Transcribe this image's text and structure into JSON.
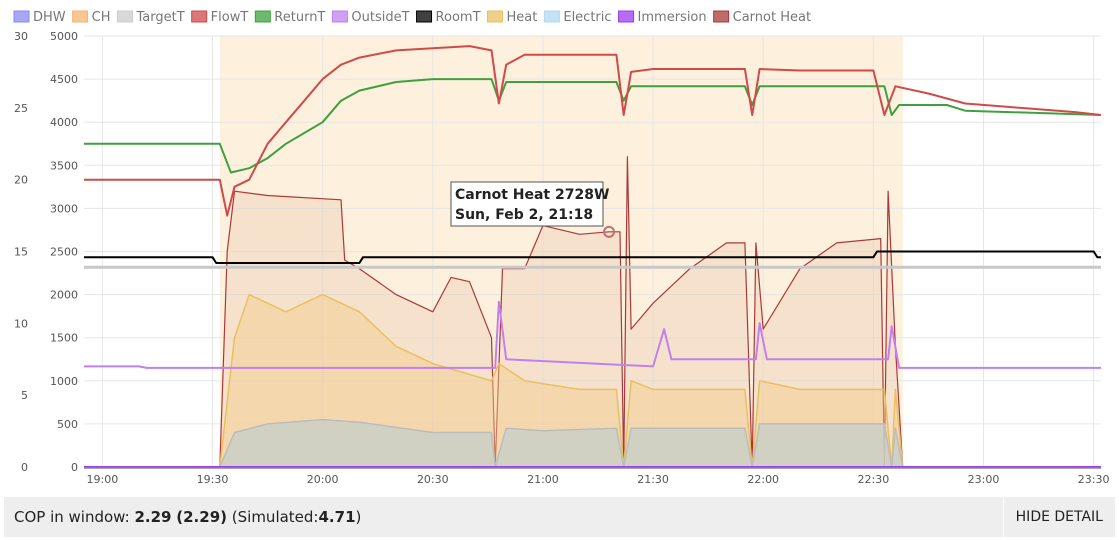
{
  "chart_data": {
    "type": "line",
    "x_axis": {
      "type": "time",
      "ticks": [
        "19:00",
        "19:30",
        "20:00",
        "20:30",
        "21:00",
        "21:30",
        "22:00",
        "22:30",
        "23:00",
        "23:30"
      ],
      "range": [
        "18:55",
        "23:32"
      ]
    },
    "y_axes": [
      {
        "side": "left-outer",
        "ticks": [
          0,
          5,
          10,
          15,
          20,
          25,
          30
        ],
        "range": [
          0,
          30
        ],
        "unit": "temperature"
      },
      {
        "side": "left-inner",
        "ticks": [
          0,
          500,
          1000,
          1500,
          2000,
          2500,
          3000,
          3500,
          4000,
          4500,
          5000
        ],
        "range": [
          0,
          5000
        ],
        "unit": "power"
      }
    ],
    "grid": true,
    "legend_position": "top-left",
    "highlight_band": {
      "from": "19:32",
      "to": "22:38",
      "color": "#fdf0dc"
    },
    "legend": [
      {
        "name": "DHW",
        "color": "#8a8af0"
      },
      {
        "name": "CH",
        "color": "#f5b46e"
      },
      {
        "name": "TargetT",
        "color": "#cccccc"
      },
      {
        "name": "FlowT",
        "color": "#d04a4a"
      },
      {
        "name": "ReturnT",
        "color": "#3fa03f"
      },
      {
        "name": "OutsideT",
        "color": "#c080f0"
      },
      {
        "name": "RoomT",
        "color": "#000000"
      },
      {
        "name": "Heat",
        "color": "#e8c060"
      },
      {
        "name": "Electric",
        "color": "#b0d8f0"
      },
      {
        "name": "Immersion",
        "color": "#9b3cf0"
      },
      {
        "name": "Carnot Heat",
        "color": "#a83a3a"
      }
    ],
    "series": [
      {
        "name": "FlowT",
        "axis": "temp",
        "points": [
          [
            "18:55",
            20.0
          ],
          [
            "19:32",
            20.0
          ],
          [
            "19:34",
            17.5
          ],
          [
            "19:36",
            19.5
          ],
          [
            "19:40",
            20.0
          ],
          [
            "19:45",
            22.5
          ],
          [
            "19:50",
            24.0
          ],
          [
            "19:55",
            25.5
          ],
          [
            "20:00",
            27.0
          ],
          [
            "20:05",
            28.0
          ],
          [
            "20:10",
            28.5
          ],
          [
            "20:20",
            29.0
          ],
          [
            "20:40",
            29.3
          ],
          [
            "20:46",
            29.0
          ],
          [
            "20:48",
            25.3
          ],
          [
            "20:50",
            28.0
          ],
          [
            "20:55",
            28.7
          ],
          [
            "21:10",
            28.7
          ],
          [
            "21:20",
            28.7
          ],
          [
            "21:22",
            24.5
          ],
          [
            "21:24",
            27.5
          ],
          [
            "21:30",
            27.7
          ],
          [
            "21:55",
            27.7
          ],
          [
            "21:57",
            24.5
          ],
          [
            "21:59",
            27.7
          ],
          [
            "22:10",
            27.6
          ],
          [
            "22:30",
            27.6
          ],
          [
            "22:33",
            24.5
          ],
          [
            "22:36",
            26.5
          ],
          [
            "22:45",
            26.0
          ],
          [
            "22:55",
            25.3
          ],
          [
            "23:05",
            25.1
          ],
          [
            "23:15",
            24.9
          ],
          [
            "23:25",
            24.7
          ],
          [
            "23:32",
            24.5
          ]
        ]
      },
      {
        "name": "ReturnT",
        "axis": "temp",
        "points": [
          [
            "18:55",
            22.5
          ],
          [
            "19:32",
            22.5
          ],
          [
            "19:35",
            20.5
          ],
          [
            "19:40",
            20.8
          ],
          [
            "19:45",
            21.5
          ],
          [
            "19:50",
            22.5
          ],
          [
            "20:00",
            24.0
          ],
          [
            "20:05",
            25.5
          ],
          [
            "20:10",
            26.2
          ],
          [
            "20:20",
            26.8
          ],
          [
            "20:30",
            27.0
          ],
          [
            "20:46",
            27.0
          ],
          [
            "20:48",
            25.5
          ],
          [
            "20:50",
            26.8
          ],
          [
            "21:20",
            26.8
          ],
          [
            "21:22",
            25.5
          ],
          [
            "21:24",
            26.5
          ],
          [
            "21:55",
            26.5
          ],
          [
            "21:57",
            25.2
          ],
          [
            "21:59",
            26.5
          ],
          [
            "22:33",
            26.5
          ],
          [
            "22:35",
            24.5
          ],
          [
            "22:37",
            25.2
          ],
          [
            "22:50",
            25.2
          ],
          [
            "22:55",
            24.8
          ],
          [
            "23:32",
            24.5
          ]
        ]
      },
      {
        "name": "TargetT",
        "axis": "temp",
        "points": [
          [
            "18:55",
            13.9
          ],
          [
            "23:32",
            13.9
          ]
        ]
      },
      {
        "name": "RoomT",
        "axis": "temp",
        "points": [
          [
            "18:55",
            14.6
          ],
          [
            "19:30",
            14.6
          ],
          [
            "19:31",
            14.2
          ],
          [
            "20:10",
            14.2
          ],
          [
            "20:11",
            14.6
          ],
          [
            "22:30",
            14.6
          ],
          [
            "22:31",
            15.0
          ],
          [
            "23:30",
            15.0
          ],
          [
            "23:31",
            14.6
          ],
          [
            "23:32",
            14.6
          ]
        ]
      },
      {
        "name": "OutsideT",
        "axis": "temp",
        "points": [
          [
            "18:55",
            7.0
          ],
          [
            "19:10",
            7.0
          ],
          [
            "19:12",
            6.9
          ],
          [
            "19:35",
            6.9
          ],
          [
            "20:47",
            6.9
          ],
          [
            "20:48",
            11.5
          ],
          [
            "20:50",
            7.5
          ],
          [
            "21:30",
            7.0
          ],
          [
            "21:33",
            9.6
          ],
          [
            "21:35",
            7.5
          ],
          [
            "21:58",
            7.5
          ],
          [
            "21:59",
            10.0
          ],
          [
            "22:01",
            7.5
          ],
          [
            "22:34",
            7.5
          ],
          [
            "22:35",
            9.8
          ],
          [
            "22:37",
            6.9
          ],
          [
            "23:32",
            6.9
          ]
        ]
      },
      {
        "name": "Heat",
        "axis": "power",
        "points": [
          [
            "19:32",
            0
          ],
          [
            "19:36",
            1500
          ],
          [
            "19:40",
            2000
          ],
          [
            "19:50",
            1800
          ],
          [
            "20:00",
            2000
          ],
          [
            "20:10",
            1800
          ],
          [
            "20:20",
            1400
          ],
          [
            "20:30",
            1200
          ],
          [
            "20:46",
            1000
          ],
          [
            "20:48",
            1200
          ],
          [
            "20:55",
            1000
          ],
          [
            "21:10",
            900
          ],
          [
            "21:20",
            900
          ],
          [
            "21:22",
            0
          ],
          [
            "21:24",
            1000
          ],
          [
            "21:30",
            900
          ],
          [
            "21:55",
            900
          ],
          [
            "21:57",
            0
          ],
          [
            "21:59",
            1000
          ],
          [
            "22:10",
            900
          ],
          [
            "22:33",
            900
          ],
          [
            "22:35",
            0
          ],
          [
            "22:36",
            900
          ],
          [
            "22:38",
            0
          ]
        ]
      },
      {
        "name": "Carnot Heat",
        "axis": "power",
        "points": [
          [
            "18:55",
            0
          ],
          [
            "19:32",
            0
          ],
          [
            "19:34",
            2500
          ],
          [
            "19:36",
            3200
          ],
          [
            "19:45",
            3150
          ],
          [
            "20:05",
            3100
          ],
          [
            "20:06",
            2400
          ],
          [
            "20:10",
            2300
          ],
          [
            "20:20",
            2000
          ],
          [
            "20:30",
            1800
          ],
          [
            "20:35",
            2200
          ],
          [
            "20:40",
            2150
          ],
          [
            "20:46",
            1500
          ],
          [
            "20:47",
            0
          ],
          [
            "20:49",
            2300
          ],
          [
            "20:55",
            2300
          ],
          [
            "21:00",
            2800
          ],
          [
            "21:10",
            2700
          ],
          [
            "21:18",
            2728
          ],
          [
            "21:21",
            2728
          ],
          [
            "21:22",
            0
          ],
          [
            "21:23",
            3600
          ],
          [
            "21:24",
            1600
          ],
          [
            "21:30",
            1900
          ],
          [
            "21:40",
            2300
          ],
          [
            "21:50",
            2600
          ],
          [
            "21:55",
            2600
          ],
          [
            "21:57",
            0
          ],
          [
            "21:58",
            2600
          ],
          [
            "22:00",
            1600
          ],
          [
            "22:10",
            2300
          ],
          [
            "22:20",
            2600
          ],
          [
            "22:32",
            2650
          ],
          [
            "22:33",
            0
          ],
          [
            "22:34",
            3200
          ],
          [
            "22:36",
            1400
          ],
          [
            "22:38",
            0
          ],
          [
            "23:32",
            0
          ]
        ]
      },
      {
        "name": "Electric",
        "axis": "power",
        "points": [
          [
            "18:55",
            0
          ],
          [
            "19:32",
            0
          ],
          [
            "19:36",
            400
          ],
          [
            "19:45",
            500
          ],
          [
            "20:00",
            550
          ],
          [
            "20:10",
            520
          ],
          [
            "20:30",
            400
          ],
          [
            "20:46",
            400
          ],
          [
            "20:47",
            0
          ],
          [
            "20:50",
            450
          ],
          [
            "21:00",
            420
          ],
          [
            "21:20",
            450
          ],
          [
            "21:22",
            0
          ],
          [
            "21:24",
            450
          ],
          [
            "21:55",
            450
          ],
          [
            "21:57",
            0
          ],
          [
            "21:59",
            500
          ],
          [
            "22:33",
            500
          ],
          [
            "22:35",
            0
          ],
          [
            "22:36",
            450
          ],
          [
            "22:38",
            0
          ],
          [
            "23:32",
            0
          ]
        ]
      }
    ]
  },
  "tooltip": {
    "line1": "Carnot Heat 2728W",
    "line2": "Sun, Feb 2, 21:18",
    "at_time": "21:18",
    "at_value": 2728
  },
  "footer": {
    "cop_label": "COP in window:",
    "cop_value": "2.29",
    "cop_paren": "(2.29)",
    "sim_label": "(Simulated:",
    "sim_value": "4.71",
    "sim_close": ")",
    "hide_detail": "HIDE DETAIL"
  }
}
